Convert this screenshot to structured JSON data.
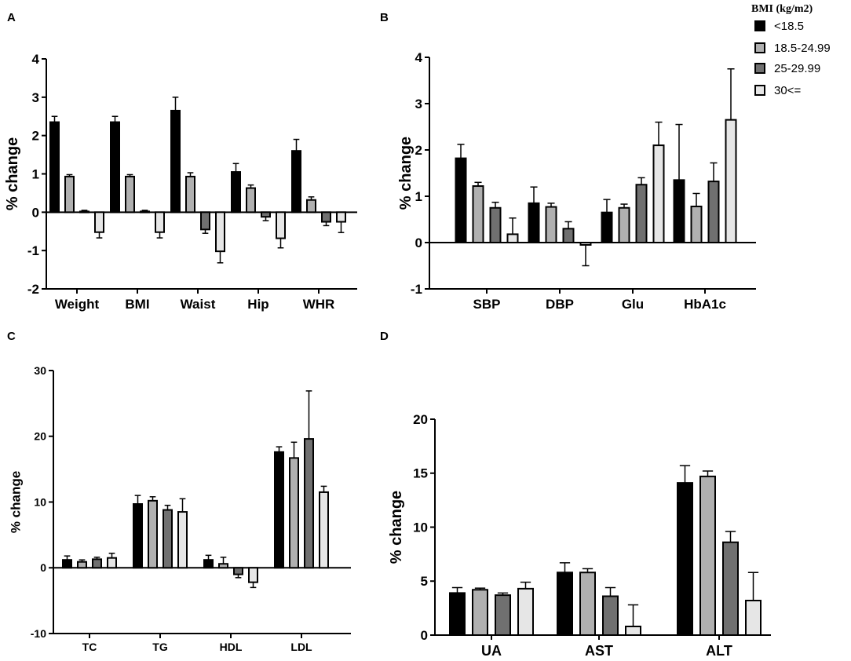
{
  "legend": {
    "title": "BMI (kg/m2)",
    "items": [
      {
        "label": "<18.5",
        "color": "#000000"
      },
      {
        "label": "18.5-24.99",
        "color": "#b0b0b0"
      },
      {
        "label": "25-29.99",
        "color": "#707070"
      },
      {
        "label": "30<=",
        "color": "#e6e6e6"
      }
    ]
  },
  "panels": {
    "A": {
      "letter": "A"
    },
    "B": {
      "letter": "B"
    },
    "C": {
      "letter": "C"
    },
    "D": {
      "letter": "D"
    }
  },
  "chart_data": [
    {
      "id": "A",
      "type": "bar",
      "ylabel": "% change",
      "xlabel": "",
      "ylim": [
        -2,
        4
      ],
      "yticks": [
        -2,
        -1,
        0,
        1,
        2,
        3,
        4
      ],
      "categories": [
        "Weight",
        "BMI",
        "Waist",
        "Hip",
        "WHR"
      ],
      "series": [
        {
          "name": "<18.5",
          "values": [
            2.35,
            2.35,
            2.65,
            1.05,
            1.6
          ],
          "errors": [
            0.15,
            0.15,
            0.35,
            0.22,
            0.3
          ]
        },
        {
          "name": "18.5-24.99",
          "values": [
            0.93,
            0.93,
            0.93,
            0.63,
            0.32
          ],
          "errors": [
            0.05,
            0.05,
            0.1,
            0.08,
            0.08
          ]
        },
        {
          "name": "25-29.99",
          "values": [
            0.02,
            0.02,
            -0.45,
            -0.12,
            -0.25
          ],
          "errors": [
            0.03,
            0.03,
            0.1,
            0.1,
            0.1
          ]
        },
        {
          "name": "30<=",
          "values": [
            -0.52,
            -0.52,
            -1.02,
            -0.68,
            -0.25
          ],
          "errors": [
            0.15,
            0.15,
            0.3,
            0.25,
            0.28
          ]
        }
      ]
    },
    {
      "id": "B",
      "type": "bar",
      "ylabel": "% change",
      "xlabel": "",
      "ylim": [
        -1,
        4
      ],
      "yticks": [
        -1,
        0,
        1,
        2,
        3,
        4
      ],
      "categories": [
        "SBP",
        "DBP",
        "Glu",
        "HbA1c"
      ],
      "series": [
        {
          "name": "<18.5",
          "values": [
            1.82,
            0.85,
            0.65,
            1.35
          ],
          "errors": [
            0.3,
            0.35,
            0.28,
            1.2
          ]
        },
        {
          "name": "18.5-24.99",
          "values": [
            1.22,
            0.77,
            0.75,
            0.78
          ],
          "errors": [
            0.08,
            0.08,
            0.08,
            0.28
          ]
        },
        {
          "name": "25-29.99",
          "values": [
            0.75,
            0.3,
            1.25,
            1.32
          ],
          "errors": [
            0.12,
            0.15,
            0.15,
            0.4
          ]
        },
        {
          "name": "30<=",
          "values": [
            0.18,
            -0.05,
            2.1,
            2.65
          ],
          "errors": [
            0.35,
            0.45,
            0.5,
            1.1
          ]
        }
      ]
    },
    {
      "id": "C",
      "type": "bar",
      "ylabel": "% change",
      "xlabel": "",
      "ylim": [
        -10,
        30
      ],
      "yticks": [
        -10,
        0,
        10,
        20,
        30
      ],
      "categories": [
        "TC",
        "TG",
        "HDL",
        "LDL"
      ],
      "series": [
        {
          "name": "<18.5",
          "values": [
            1.2,
            9.7,
            1.2,
            17.6
          ],
          "errors": [
            0.6,
            1.3,
            0.7,
            0.8
          ]
        },
        {
          "name": "18.5-24.99",
          "values": [
            0.9,
            10.2,
            0.6,
            16.7
          ],
          "errors": [
            0.3,
            0.6,
            1.0,
            2.4
          ]
        },
        {
          "name": "25-29.99",
          "values": [
            1.3,
            8.8,
            -1.0,
            19.6
          ],
          "errors": [
            0.3,
            0.7,
            0.5,
            7.3
          ]
        },
        {
          "name": "30<=",
          "values": [
            1.5,
            8.5,
            -2.2,
            11.5
          ],
          "errors": [
            0.7,
            2.0,
            0.8,
            0.9
          ]
        }
      ]
    },
    {
      "id": "D",
      "type": "bar",
      "ylabel": "% change",
      "xlabel": "",
      "ylim": [
        0,
        20
      ],
      "yticks": [
        0,
        5,
        10,
        15,
        20
      ],
      "categories": [
        "UA",
        "AST",
        "ALT"
      ],
      "series": [
        {
          "name": "<18.5",
          "values": [
            3.9,
            5.8,
            14.1
          ],
          "errors": [
            0.5,
            0.9,
            1.6
          ]
        },
        {
          "name": "18.5-24.99",
          "values": [
            4.2,
            5.8,
            14.7
          ],
          "errors": [
            0.15,
            0.35,
            0.5
          ]
        },
        {
          "name": "25-29.99",
          "values": [
            3.7,
            3.6,
            8.6
          ],
          "errors": [
            0.2,
            0.8,
            1.0
          ]
        },
        {
          "name": "30<=",
          "values": [
            4.3,
            0.8,
            3.2
          ],
          "errors": [
            0.6,
            2.0,
            2.6
          ]
        }
      ]
    }
  ]
}
